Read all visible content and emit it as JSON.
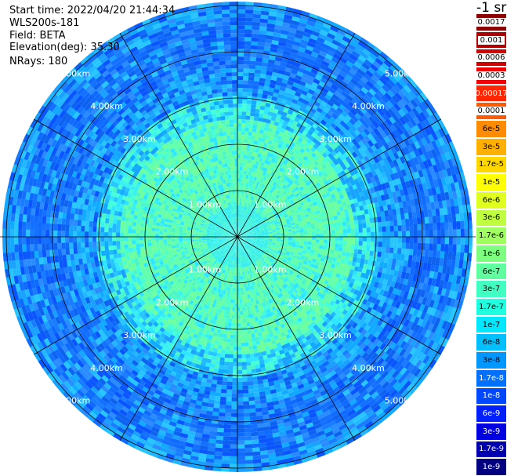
{
  "header": {
    "start_time": "Start time: 2022/04/20 21:44:34",
    "instrument": "WLS200s-181",
    "field": "Field: BETA",
    "elevation": "Elevation(deg): 35.30",
    "nrays": "NRays: 180"
  },
  "unit_label": "-1 sr",
  "ring_labels": [
    "1.00km",
    "2.00km",
    "3.00km",
    "4.00km",
    "5.00km"
  ],
  "colorbar": [
    {
      "label": "0.0017",
      "color": "#8b0000",
      "text": "#000000",
      "boxed": true
    },
    {
      "label": "0.001",
      "color": "#b00000",
      "text": "#000000",
      "boxed": true
    },
    {
      "label": "0.0006",
      "color": "#d40000",
      "text": "#000000",
      "boxed": true
    },
    {
      "label": "0.0003",
      "color": "#f00000",
      "text": "#000000",
      "boxed": true
    },
    {
      "label": "0.00017",
      "color": "#ff2600",
      "text": "#ffffff",
      "boxed": false
    },
    {
      "label": "0.0001",
      "color": "#ff5a00",
      "text": "#000000",
      "boxed": true
    },
    {
      "label": "6e-5",
      "color": "#ff8c00",
      "text": "#000000",
      "boxed": false
    },
    {
      "label": "3e-5",
      "color": "#ffb000",
      "text": "#000000",
      "boxed": false
    },
    {
      "label": "1.7e-5",
      "color": "#ffd700",
      "text": "#000000",
      "boxed": false
    },
    {
      "label": "1e-5",
      "color": "#ffff00",
      "text": "#000000",
      "boxed": false
    },
    {
      "label": "6e-6",
      "color": "#e0ff20",
      "text": "#000000",
      "boxed": false
    },
    {
      "label": "3e-6",
      "color": "#c0ff40",
      "text": "#000000",
      "boxed": false
    },
    {
      "label": "1.7e-6",
      "color": "#a0ff60",
      "text": "#000000",
      "boxed": false
    },
    {
      "label": "1e-6",
      "color": "#7fff7f",
      "text": "#000000",
      "boxed": false
    },
    {
      "label": "6e-7",
      "color": "#60ffa0",
      "text": "#000000",
      "boxed": false
    },
    {
      "label": "3e-7",
      "color": "#40ffc0",
      "text": "#000000",
      "boxed": false
    },
    {
      "label": "1.7e-7",
      "color": "#20ffe0",
      "text": "#000000",
      "boxed": false
    },
    {
      "label": "1e-7",
      "color": "#00e8ff",
      "text": "#000000",
      "boxed": false
    },
    {
      "label": "6e-8",
      "color": "#00c0ff",
      "text": "#000000",
      "boxed": false
    },
    {
      "label": "3e-8",
      "color": "#0098ff",
      "text": "#000000",
      "boxed": false
    },
    {
      "label": "1.7e-8",
      "color": "#0070ff",
      "text": "#ffffff",
      "boxed": false
    },
    {
      "label": "1e-8",
      "color": "#0048ff",
      "text": "#ffffff",
      "boxed": false
    },
    {
      "label": "6e-9",
      "color": "#0020ff",
      "text": "#ffffff",
      "boxed": false
    },
    {
      "label": "3e-9",
      "color": "#0000e0",
      "text": "#ffffff",
      "boxed": false
    },
    {
      "label": "1.7e-9",
      "color": "#0000b0",
      "text": "#ffffff",
      "boxed": false
    },
    {
      "label": "1e-9",
      "color": "#000080",
      "text": "#ffffff",
      "boxed": false
    }
  ]
}
